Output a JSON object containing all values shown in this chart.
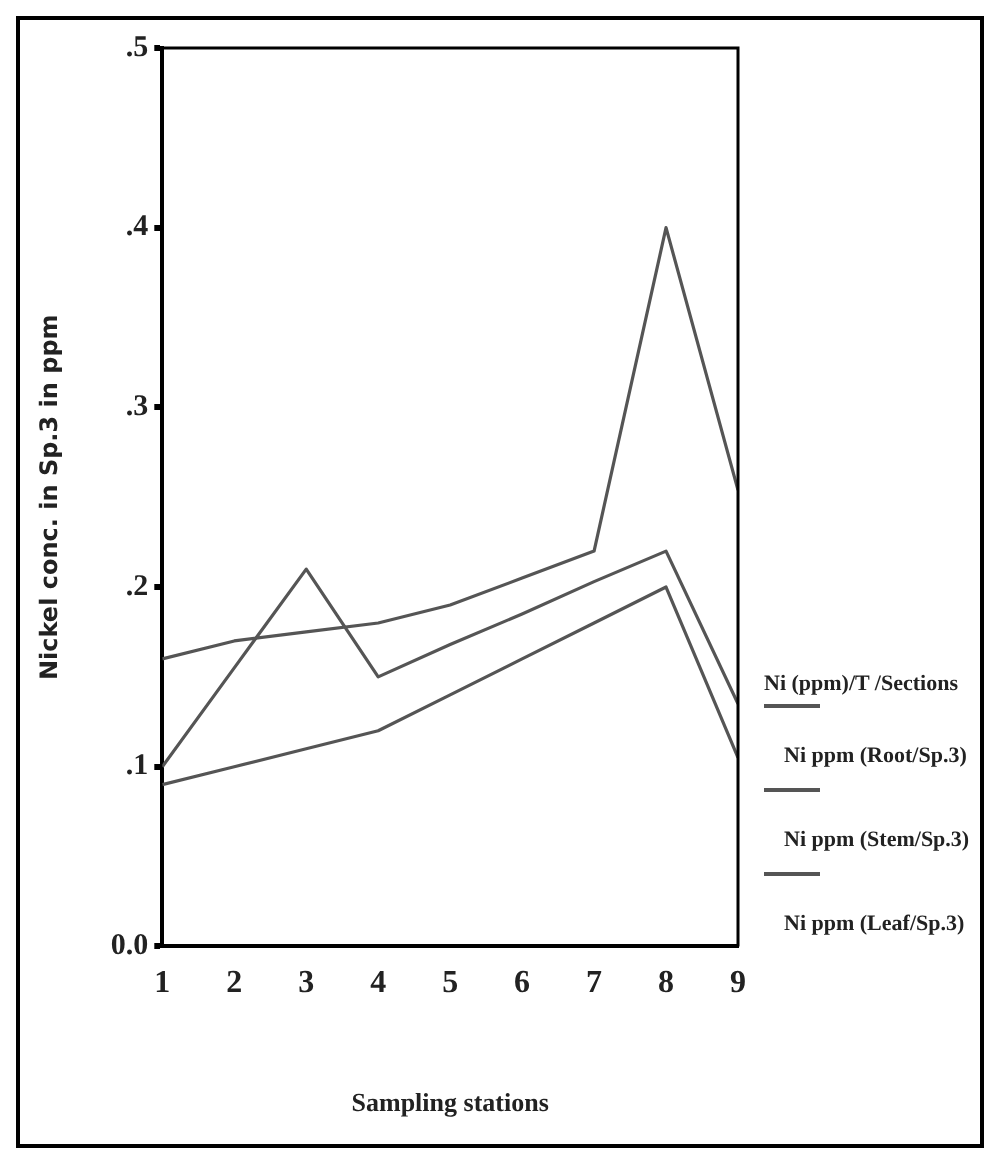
{
  "chart_data": {
    "type": "line",
    "xlabel": "Sampling stations",
    "ylabel": "Nickel conc. in Sp.3 in ppm",
    "legend_title": "Ni (ppm)/T /Sections",
    "x": [
      1,
      2,
      3,
      4,
      5,
      6,
      7,
      8,
      9
    ],
    "series": [
      {
        "name": "Ni ppm (Root/Sp.3)",
        "color": "#555555",
        "values": [
          0.16,
          0.17,
          0.175,
          0.18,
          0.19,
          0.205,
          0.22,
          0.4,
          0.254
        ]
      },
      {
        "name": "Ni ppm (Stem/Sp.3)",
        "color": "#555555",
        "values": [
          0.1,
          0.155,
          0.21,
          0.15,
          0.168,
          0.185,
          0.203,
          0.22,
          0.135
        ]
      },
      {
        "name": "Ni ppm (Leaf/Sp.3)",
        "color": "#555555",
        "values": [
          0.09,
          0.1,
          0.11,
          0.12,
          0.14,
          0.16,
          0.18,
          0.2,
          0.105
        ]
      }
    ],
    "xlim": [
      1,
      9
    ],
    "xticks": [
      1,
      2,
      3,
      4,
      5,
      6,
      7,
      8,
      9
    ],
    "ylim": [
      0,
      0.5
    ],
    "yticks": [
      {
        "value": 0,
        "label": "0.0"
      },
      {
        "value": 0.1,
        "label": ".1"
      },
      {
        "value": 0.2,
        "label": ".2"
      },
      {
        "value": 0.3,
        "label": ".3"
      },
      {
        "value": 0.4,
        "label": ".4"
      },
      {
        "value": 0.5,
        "label": ".5"
      }
    ],
    "grid": false,
    "legend": "right",
    "marker": "none",
    "line_style": "solid"
  }
}
